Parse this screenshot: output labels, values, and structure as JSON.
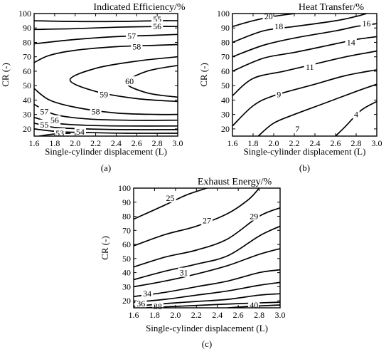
{
  "chart_data": [
    {
      "type": "contour",
      "panel_label": "(a)",
      "title": "Indicated Efficiency/%",
      "xlabel": "Single-cylinder displacement (L)",
      "ylabel": "CR (-)",
      "xlim": [
        1.6,
        3.0
      ],
      "ylim": [
        15,
        100
      ],
      "xticks": [
        "1.6",
        "1.8",
        "2.0",
        "2.2",
        "2.4",
        "2.6",
        "2.8",
        "3.0"
      ],
      "yticks": [
        "20",
        "30",
        "40",
        "50",
        "60",
        "70",
        "80",
        "90",
        "100"
      ],
      "contours": [
        {
          "level": "55",
          "points": [
            [
              1.6,
              95
            ],
            [
              2.0,
              94.5
            ],
            [
              2.4,
              94.5
            ],
            [
              2.8,
              95
            ],
            [
              3.0,
              95
            ]
          ],
          "label_at": [
            2.8,
            96
          ]
        },
        {
          "level": "56",
          "points": [
            [
              1.6,
              89
            ],
            [
              2.0,
              89.5
            ],
            [
              2.4,
              90.5
            ],
            [
              2.8,
              91
            ],
            [
              3.0,
              91
            ]
          ],
          "label_at": [
            2.8,
            91
          ]
        },
        {
          "level": "57",
          "points": [
            [
              1.6,
              79
            ],
            [
              2.0,
              82
            ],
            [
              2.4,
              84
            ],
            [
              2.8,
              85
            ],
            [
              3.0,
              85.5
            ]
          ],
          "label_at": [
            2.55,
            84.5
          ]
        },
        {
          "level": "58",
          "points": [
            [
              1.6,
              66
            ],
            [
              1.75,
              71
            ],
            [
              2.0,
              74.5
            ],
            [
              2.4,
              77
            ],
            [
              2.8,
              78
            ],
            [
              3.0,
              78.5
            ]
          ],
          "label_at": [
            2.6,
            77
          ]
        },
        {
          "level": "59",
          "points": [
            [
              3.0,
              70
            ],
            [
              2.6,
              67
            ],
            [
              2.2,
              62
            ],
            [
              1.95,
              54
            ],
            [
              2.2,
              46
            ],
            [
              2.6,
              41
            ],
            [
              3.0,
              39
            ]
          ],
          "label_at": [
            2.28,
            44
          ]
        },
        {
          "level": "60",
          "points": [
            [
              3.0,
              64
            ],
            [
              2.7,
              60
            ],
            [
              2.5,
              52
            ],
            [
              2.7,
              45
            ],
            [
              3.0,
              42
            ]
          ],
          "label_at": [
            2.53,
            53
          ]
        },
        {
          "level": "58",
          "points": [
            [
              1.6,
              48
            ],
            [
              1.75,
              40
            ],
            [
              2.0,
              35
            ],
            [
              2.4,
              31
            ],
            [
              2.8,
              30
            ],
            [
              3.0,
              30
            ]
          ],
          "label_at": [
            2.2,
            32
          ]
        },
        {
          "level": "57",
          "points": [
            [
              1.6,
              37
            ],
            [
              1.8,
              30
            ],
            [
              2.1,
              27
            ],
            [
              2.5,
              26
            ],
            [
              3.0,
              26
            ]
          ],
          "label_at": [
            1.7,
            32
          ]
        },
        {
          "level": "56",
          "points": [
            [
              1.6,
              28
            ],
            [
              1.8,
              24
            ],
            [
              2.1,
              22.5
            ],
            [
              2.5,
              22
            ],
            [
              3.0,
              22
            ]
          ],
          "label_at": [
            1.8,
            26
          ]
        },
        {
          "level": "55",
          "points": [
            [
              1.6,
              24
            ],
            [
              1.8,
              21
            ],
            [
              2.1,
              20
            ],
            [
              2.5,
              19.5
            ],
            [
              3.0,
              19.5
            ]
          ],
          "label_at": [
            1.7,
            23
          ]
        },
        {
          "level": "54",
          "points": [
            [
              1.6,
              20
            ],
            [
              1.85,
              18
            ],
            [
              2.1,
              17.5
            ],
            [
              2.5,
              17
            ],
            [
              3.0,
              17
            ]
          ],
          "label_at": [
            2.05,
            18
          ]
        },
        {
          "level": "53",
          "points": [
            [
              1.65,
              15
            ],
            [
              1.8,
              16.5
            ],
            [
              1.95,
              17
            ]
          ],
          "label_at": [
            1.85,
            17
          ]
        }
      ]
    },
    {
      "type": "contour",
      "panel_label": "(b)",
      "title": "Heat Transfer/%",
      "xlabel": "Single-cylinder displacement (L)",
      "ylabel": "CR (-)",
      "xlim": [
        1.6,
        3.0
      ],
      "ylim": [
        15,
        100
      ],
      "xticks": [
        "1.6",
        "1.8",
        "2.0",
        "2.2",
        "2.4",
        "2.6",
        "2.8",
        "3.0"
      ],
      "yticks": [
        "20",
        "30",
        "40",
        "50",
        "60",
        "70",
        "80",
        "90",
        "100"
      ],
      "contours": [
        {
          "level": "20",
          "points": [
            [
              1.6,
              91
            ],
            [
              1.8,
              95
            ],
            [
              2.0,
              98
            ],
            [
              2.2,
              100
            ]
          ],
          "label_at": [
            1.95,
            98
          ]
        },
        {
          "level": "18",
          "points": [
            [
              1.6,
              80
            ],
            [
              1.9,
              88
            ],
            [
              2.2,
              91
            ],
            [
              2.6,
              95
            ],
            [
              2.8,
              98
            ],
            [
              2.9,
              100
            ]
          ],
          "label_at": [
            2.05,
            91
          ]
        },
        {
          "level": "16",
          "points": [
            [
              1.6,
              70
            ],
            [
              1.9,
              78
            ],
            [
              2.2,
              83
            ],
            [
              2.6,
              88
            ],
            [
              2.8,
              91
            ],
            [
              3.0,
              93
            ]
          ],
          "label_at": [
            2.9,
            93
          ]
        },
        {
          "level": "14",
          "points": [
            [
              1.6,
              60
            ],
            [
              1.9,
              69
            ],
            [
              2.2,
              73
            ],
            [
              2.6,
              79
            ],
            [
              2.8,
              82
            ],
            [
              3.0,
              84
            ]
          ],
          "label_at": [
            2.75,
            80
          ]
        },
        {
          "level": "11",
          "points": [
            [
              1.6,
              43
            ],
            [
              1.8,
              55
            ],
            [
              2.1,
              60
            ],
            [
              2.4,
              65
            ],
            [
              2.7,
              70
            ],
            [
              3.0,
              74
            ]
          ],
          "label_at": [
            2.35,
            63
          ]
        },
        {
          "level": "9",
          "points": [
            [
              1.6,
              22
            ],
            [
              1.8,
              36
            ],
            [
              2.0,
              43
            ],
            [
              2.4,
              51
            ],
            [
              2.7,
              57
            ],
            [
              3.0,
              61
            ]
          ],
          "label_at": [
            2.05,
            44
          ]
        },
        {
          "level": "7",
          "points": [
            [
              1.85,
              15
            ],
            [
              2.0,
              24
            ],
            [
              2.2,
              30
            ],
            [
              2.5,
              38
            ],
            [
              2.8,
              46
            ],
            [
              3.0,
              51
            ]
          ],
          "label_at": [
            2.23,
            20
          ]
        },
        {
          "level": "4",
          "points": [
            [
              2.6,
              15
            ],
            [
              2.7,
              22
            ],
            [
              2.85,
              33
            ],
            [
              3.0,
              39
            ]
          ],
          "label_at": [
            2.8,
            30
          ]
        }
      ]
    },
    {
      "type": "contour",
      "panel_label": "(c)",
      "title": "Exhaust Energy/%",
      "xlabel": "Single-cylinder displacement (L)",
      "ylabel": "CR (-)",
      "xlim": [
        1.6,
        3.0
      ],
      "ylim": [
        15,
        100
      ],
      "xticks": [
        "1.6",
        "1.8",
        "2.0",
        "2.2",
        "2.4",
        "2.6",
        "2.8",
        "3.0"
      ],
      "yticks": [
        "20",
        "30",
        "40",
        "50",
        "60",
        "70",
        "80",
        "90",
        "100"
      ],
      "contours": [
        {
          "level": "25",
          "points": [
            [
              1.6,
              78
            ],
            [
              1.9,
              88
            ],
            [
              2.1,
              95
            ],
            [
              2.3,
              100
            ]
          ],
          "label_at": [
            1.95,
            93
          ]
        },
        {
          "level": "27",
          "points": [
            [
              1.6,
              59
            ],
            [
              1.9,
              67
            ],
            [
              2.2,
              73
            ],
            [
              2.5,
              82
            ],
            [
              2.7,
              92
            ],
            [
              2.8,
              100
            ]
          ],
          "label_at": [
            2.3,
            77
          ]
        },
        {
          "level": "29",
          "points": [
            [
              1.6,
              44
            ],
            [
              1.9,
              51
            ],
            [
              2.2,
              56
            ],
            [
              2.5,
              64
            ],
            [
              2.8,
              80
            ],
            [
              3.0,
              86
            ]
          ],
          "label_at": [
            2.75,
            80
          ]
        },
        {
          "level": "",
          "points": [
            [
              1.6,
              35
            ],
            [
              1.9,
              41
            ],
            [
              2.2,
              46
            ],
            [
              2.5,
              52
            ],
            [
              2.8,
              66
            ],
            [
              3.0,
              73
            ]
          ],
          "label_at": null
        },
        {
          "level": "31",
          "points": [
            [
              1.6,
              30
            ],
            [
              1.9,
              34
            ],
            [
              2.2,
              39
            ],
            [
              2.5,
              45
            ],
            [
              2.8,
              53
            ],
            [
              3.0,
              57
            ]
          ],
          "label_at": [
            2.08,
            40
          ]
        },
        {
          "level": "34",
          "points": [
            [
              1.6,
              23
            ],
            [
              1.9,
              26
            ],
            [
              2.2,
              30
            ],
            [
              2.5,
              34
            ],
            [
              2.8,
              40
            ],
            [
              3.0,
              42
            ]
          ],
          "label_at": [
            1.73,
            25
          ]
        },
        {
          "level": "",
          "points": [
            [
              1.6,
              19
            ],
            [
              1.9,
              21
            ],
            [
              2.2,
              24
            ],
            [
              2.5,
              27
            ],
            [
              2.8,
              31
            ],
            [
              3.0,
              33
            ]
          ],
          "label_at": null
        },
        {
          "level": "36",
          "points": [
            [
              1.6,
              16
            ],
            [
              1.9,
              18
            ],
            [
              2.2,
              19.5
            ],
            [
              2.5,
              21
            ],
            [
              2.8,
              24
            ],
            [
              3.0,
              25
            ]
          ],
          "label_at": [
            1.67,
            18
          ]
        },
        {
          "level": "38",
          "points": [
            [
              1.7,
              15
            ],
            [
              2.0,
              16
            ],
            [
              2.3,
              17
            ],
            [
              2.6,
              18
            ],
            [
              3.0,
              19
            ]
          ],
          "label_at": [
            1.83,
            16
          ]
        },
        {
          "level": "40",
          "points": [
            [
              2.5,
              15
            ],
            [
              2.7,
              16
            ],
            [
              3.0,
              17
            ]
          ],
          "label_at": [
            2.75,
            17
          ]
        }
      ]
    }
  ]
}
